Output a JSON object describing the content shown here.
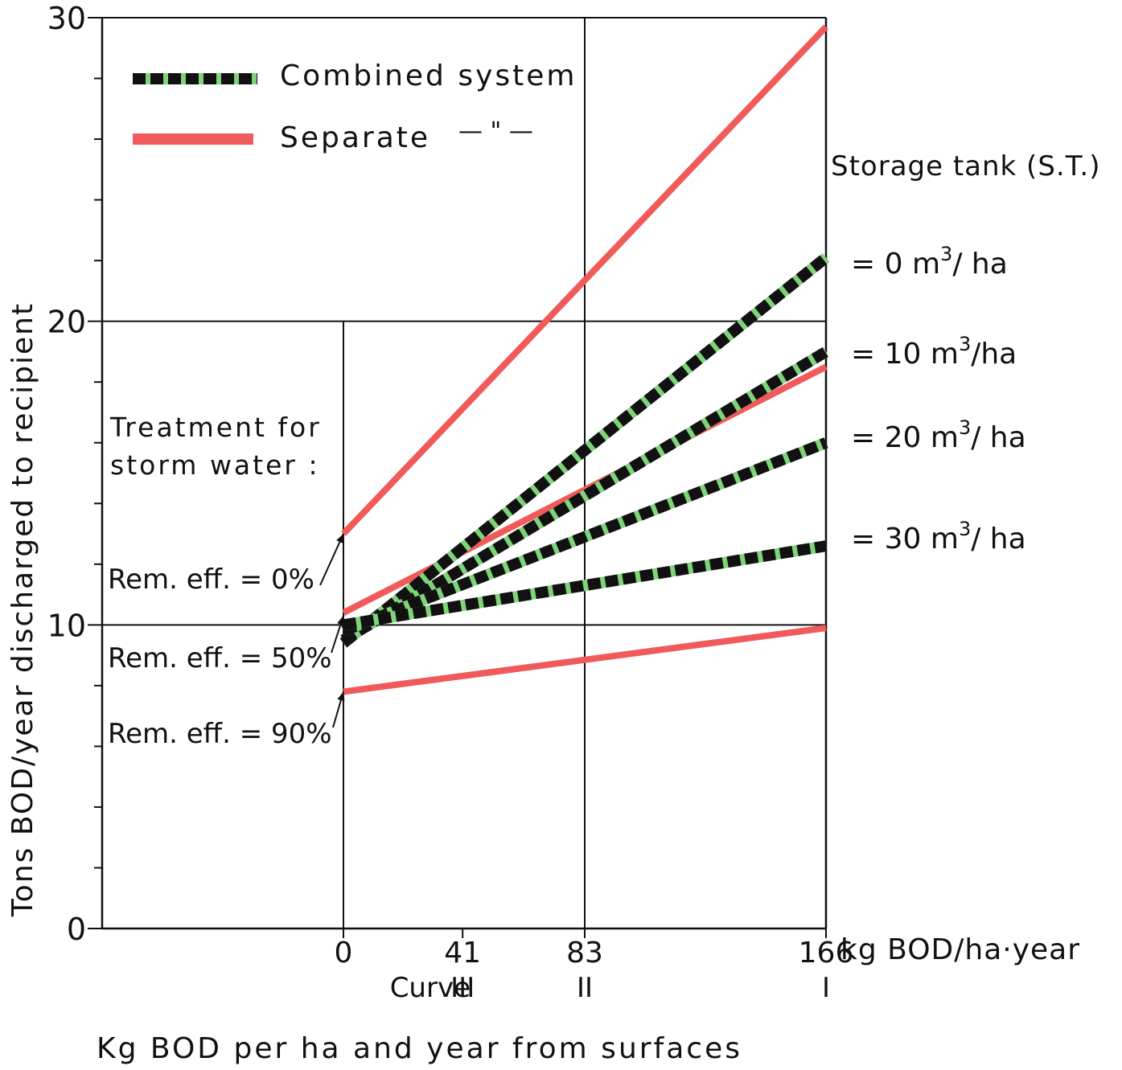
{
  "chart_data": {
    "type": "line",
    "title": "",
    "xlabel": "Kg BOD per ha and year from surfaces",
    "x_unit_label": "kg BOD/ha·year",
    "ylabel": "Tons BOD/year discharged to recipient",
    "xlim": [
      0,
      166
    ],
    "ylim": [
      0,
      30
    ],
    "x_ticks": [
      0,
      41,
      83,
      166
    ],
    "y_ticks_labeled": [
      0,
      10,
      20,
      30
    ],
    "curve_label": "Curve",
    "curve_marks": [
      {
        "x": 41,
        "label": "III"
      },
      {
        "x": 83,
        "label": "II"
      },
      {
        "x": 166,
        "label": "I"
      }
    ],
    "grid": true,
    "legend_position": "top-left",
    "legend": [
      {
        "label": "Combined system",
        "style": "combined"
      },
      {
        "label": "Separate",
        "style": "separate",
        "suffix": "— \" —"
      }
    ],
    "storage_tank_title": "Storage tank (S.T.)",
    "storage_tank_labels": [
      {
        "prefix": "= 0 m",
        "sup": "3",
        "suffix": "/ ha"
      },
      {
        "prefix": "= 10 m",
        "sup": "3",
        "suffix": "/ha"
      },
      {
        "prefix": "= 20 m",
        "sup": "3",
        "suffix": "/ ha"
      },
      {
        "prefix": "= 30 m",
        "sup": "3",
        "suffix": "/ ha"
      }
    ],
    "treatment_title": [
      "Treatment for",
      "storm water :"
    ],
    "removal_labels": [
      "Rem. eff. = 0%",
      "Rem. eff. = 50%",
      "Rem. eff. = 90%"
    ],
    "series": [
      {
        "name": "Combined system, S.T. = 0 m3/ha",
        "style": "combined",
        "x": [
          0,
          166
        ],
        "y": [
          9.4,
          22.1
        ]
      },
      {
        "name": "Combined system, S.T. = 10 m3/ha",
        "style": "combined",
        "x": [
          0,
          166
        ],
        "y": [
          9.5,
          19.0
        ]
      },
      {
        "name": "Combined system, S.T. = 20 m3/ha",
        "style": "combined",
        "x": [
          0,
          166
        ],
        "y": [
          9.8,
          16.0
        ]
      },
      {
        "name": "Combined system, S.T. = 30 m3/ha",
        "style": "combined",
        "x": [
          0,
          166
        ],
        "y": [
          10.0,
          12.6
        ]
      },
      {
        "name": "Separate, Rem. eff. = 0%",
        "style": "separate",
        "x": [
          0,
          166
        ],
        "y": [
          13.0,
          29.7
        ]
      },
      {
        "name": "Separate, Rem. eff. = 50%",
        "style": "separate",
        "x": [
          0,
          166
        ],
        "y": [
          10.4,
          18.5
        ]
      },
      {
        "name": "Separate, Rem. eff. = 90%",
        "style": "separate",
        "x": [
          0,
          166
        ],
        "y": [
          7.8,
          9.9
        ]
      }
    ],
    "colors": {
      "separate": "#f05a5a",
      "combined_dash": "#111111",
      "combined_gap": "#7fd47a",
      "axis": "#111111"
    }
  }
}
